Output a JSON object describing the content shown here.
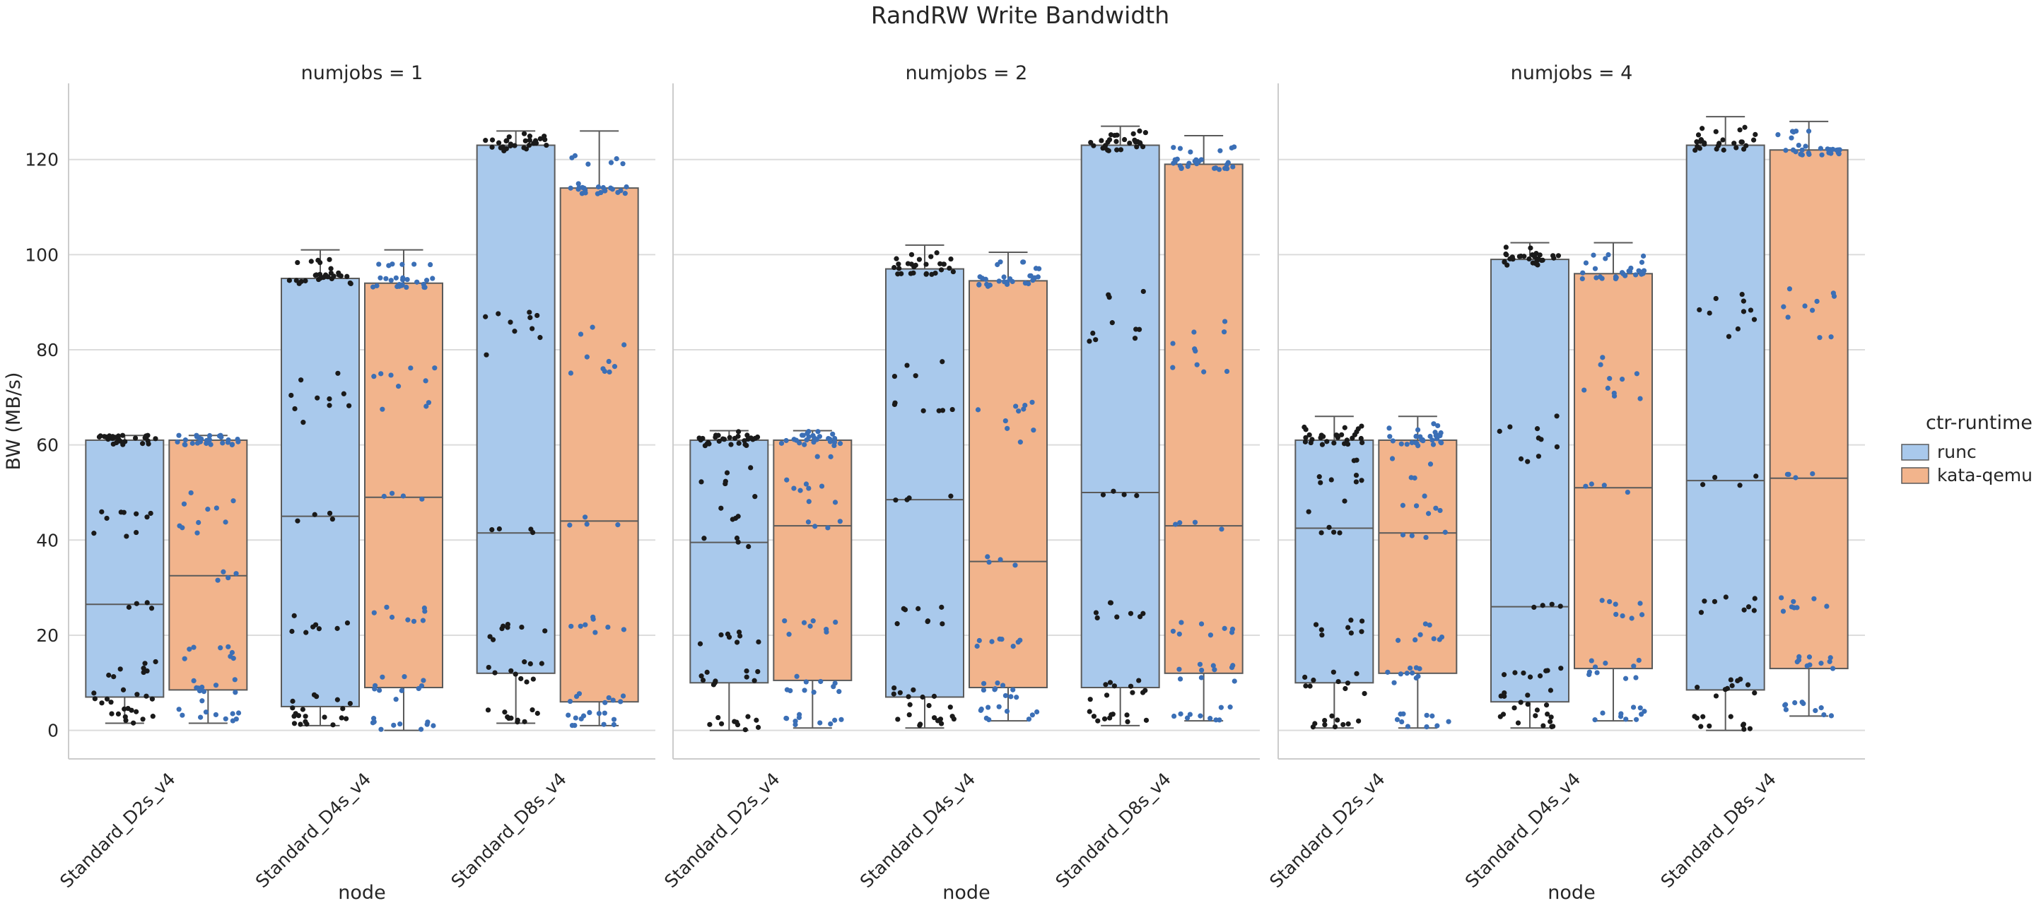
{
  "chart_data": {
    "type": "box",
    "title": "RandRW Write Bandwidth",
    "ylabel": "BW (MB/s)",
    "xlabel": "node",
    "ylim": [
      -6,
      136
    ],
    "yticks": [
      0,
      20,
      40,
      60,
      80,
      100,
      120
    ],
    "grid": true,
    "categories": [
      "Standard_D2s_v4",
      "Standard_D4s_v4",
      "Standard_D8s_v4"
    ],
    "legend": {
      "title": "ctr-runtime",
      "placement": "right",
      "entries": [
        {
          "label": "runc",
          "color": "#a9c9ec"
        },
        {
          "label": "kata-qemu",
          "color": "#f2b48c"
        }
      ]
    },
    "colors": {
      "runc_box": "#a9c9ec",
      "kata_box": "#f2b48c",
      "runc_dots": "#1a1a1a",
      "kata_dots": "#3b6fb6",
      "box_edge": "#5a5a5a",
      "grid": "#dcdcdc"
    },
    "panels": [
      {
        "title": "numjobs = 1",
        "boxes": [
          {
            "category": "Standard_D2s_v4",
            "series": "runc",
            "whislo": 1.5,
            "q1": 7,
            "med": 26.5,
            "q3": 61,
            "whishi": 62
          },
          {
            "category": "Standard_D2s_v4",
            "series": "kata-qemu",
            "whislo": 1.5,
            "q1": 8.5,
            "med": 32.5,
            "q3": 61,
            "whishi": 62
          },
          {
            "category": "Standard_D4s_v4",
            "series": "runc",
            "whislo": 1,
            "q1": 5,
            "med": 45,
            "q3": 95,
            "whishi": 101
          },
          {
            "category": "Standard_D4s_v4",
            "series": "kata-qemu",
            "whislo": 0,
            "q1": 9,
            "med": 49,
            "q3": 94,
            "whishi": 101
          },
          {
            "category": "Standard_D8s_v4",
            "series": "runc",
            "whislo": 1.5,
            "q1": 12,
            "med": 41.5,
            "q3": 123,
            "whishi": 126
          },
          {
            "category": "Standard_D8s_v4",
            "series": "kata-qemu",
            "whislo": 1,
            "q1": 6,
            "med": 44,
            "q3": 114,
            "whishi": 126
          }
        ]
      },
      {
        "title": "numjobs = 2",
        "boxes": [
          {
            "category": "Standard_D2s_v4",
            "series": "runc",
            "whislo": 0,
            "q1": 10,
            "med": 39.5,
            "q3": 61,
            "whishi": 63
          },
          {
            "category": "Standard_D2s_v4",
            "series": "kata-qemu",
            "whislo": 0.5,
            "q1": 10.5,
            "med": 43,
            "q3": 61,
            "whishi": 63
          },
          {
            "category": "Standard_D4s_v4",
            "series": "runc",
            "whislo": 0.5,
            "q1": 7,
            "med": 48.5,
            "q3": 97,
            "whishi": 102
          },
          {
            "category": "Standard_D4s_v4",
            "series": "kata-qemu",
            "whislo": 2,
            "q1": 9,
            "med": 35.5,
            "q3": 94.5,
            "whishi": 100.5
          },
          {
            "category": "Standard_D8s_v4",
            "series": "runc",
            "whislo": 1,
            "q1": 9,
            "med": 50,
            "q3": 123,
            "whishi": 127
          },
          {
            "category": "Standard_D8s_v4",
            "series": "kata-qemu",
            "whislo": 2,
            "q1": 12,
            "med": 43,
            "q3": 119,
            "whishi": 125
          }
        ]
      },
      {
        "title": "numjobs = 4",
        "boxes": [
          {
            "category": "Standard_D2s_v4",
            "series": "runc",
            "whislo": 0.5,
            "q1": 10,
            "med": 42.5,
            "q3": 61,
            "whishi": 66
          },
          {
            "category": "Standard_D2s_v4",
            "series": "kata-qemu",
            "whislo": 0.5,
            "q1": 12,
            "med": 41.5,
            "q3": 61,
            "whishi": 66
          },
          {
            "category": "Standard_D4s_v4",
            "series": "runc",
            "whislo": 0.5,
            "q1": 6,
            "med": 26,
            "q3": 99,
            "whishi": 102.5
          },
          {
            "category": "Standard_D4s_v4",
            "series": "kata-qemu",
            "whislo": 2,
            "q1": 13,
            "med": 51,
            "q3": 96,
            "whishi": 102.5
          },
          {
            "category": "Standard_D8s_v4",
            "series": "runc",
            "whislo": 0,
            "q1": 8.5,
            "med": 52.5,
            "q3": 123,
            "whishi": 129
          },
          {
            "category": "Standard_D8s_v4",
            "series": "kata-qemu",
            "whislo": 3,
            "q1": 13,
            "med": 53,
            "q3": 122,
            "whishi": 128
          }
        ]
      }
    ]
  }
}
